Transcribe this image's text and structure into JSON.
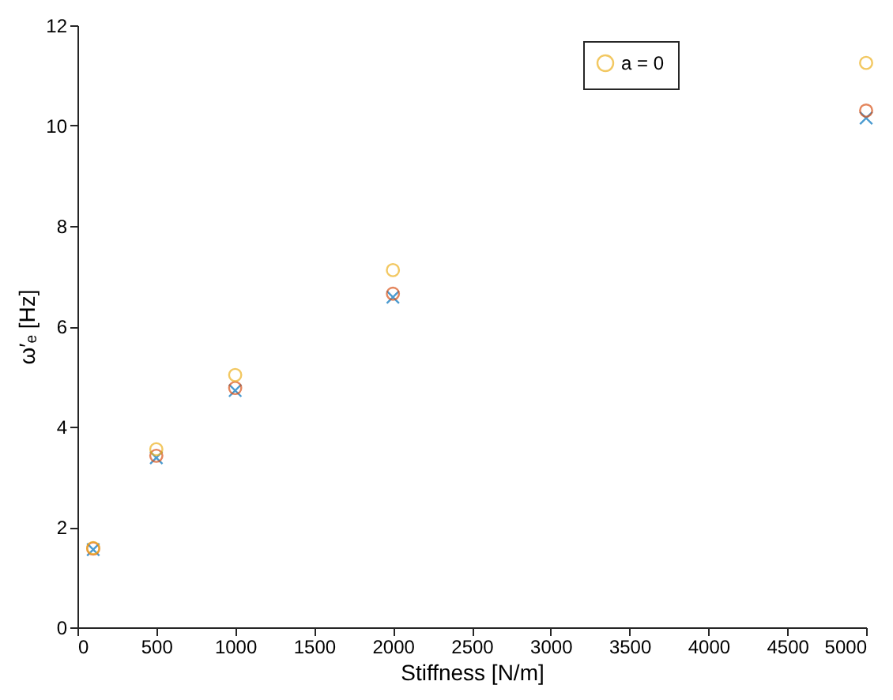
{
  "chart_data": {
    "type": "scatter",
    "xlabel": "Stiffness [N/m]",
    "ylabel": "ω′ₑ [Hz]",
    "x": [
      100,
      500,
      1000,
      2000,
      5000
    ],
    "series": [
      {
        "color": "#0072bd",
        "marker": "cross",
        "values": [
          1.55,
          3.38,
          4.72,
          6.58,
          10.15
        ]
      },
      {
        "color": "#d95319",
        "marker": "circle",
        "values": [
          1.57,
          3.42,
          4.77,
          6.65,
          10.3
        ]
      },
      {
        "name": "a = 0",
        "color": "#edb120",
        "marker": "circle",
        "values": [
          1.58,
          3.55,
          5.03,
          7.12,
          11.25
        ]
      }
    ],
    "xlim": [
      0,
      5000
    ],
    "xticks": [
      0,
      500,
      1000,
      1500,
      2000,
      2500,
      3000,
      3500,
      4000,
      4500,
      5000
    ],
    "ylim": [
      0,
      12
    ],
    "yticks": [
      0,
      2,
      4,
      6,
      8,
      10,
      12
    ],
    "grid": false,
    "legend": "top right"
  }
}
